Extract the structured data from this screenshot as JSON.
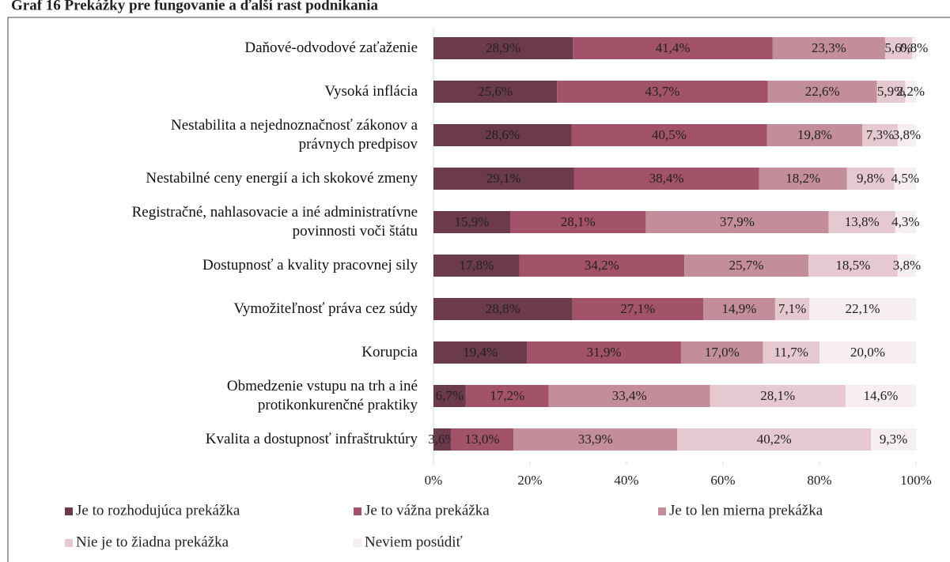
{
  "chart_data": {
    "type": "stacked-barh",
    "title": "Graf 16 Prekážky pre fungovanie a ďalší rast podnikania",
    "categories": [
      "Daňové-odvodové zaťaženie",
      "Vysoká inflácia",
      "Nestabilita a nejednoznačnosť zákonov a\nprávnych predpisov",
      "Nestabilné ceny energií a ich skokové zmeny",
      "Registračné, nahlasovacie a iné administratívne\npovinnosti voči štátu",
      "Dostupnosť a kvality pracovnej sily",
      "Vymožiteľnosť práva cez súdy",
      "Korupcia",
      "Obmedzenie vstupu na trh a iné\nprotikonkurenčné praktiky",
      "Kvalita a dostupnosť infraštruktúry"
    ],
    "series": [
      {
        "name": "Je to rozhodujúca prekážka",
        "color": "#6b3a4c",
        "values": [
          28.9,
          25.6,
          28.6,
          29.1,
          15.9,
          17.8,
          28.8,
          19.4,
          6.7,
          3.6
        ],
        "value_labels": [
          "28,9%",
          "25,6%",
          "28,6%",
          "29,1%",
          "15,9%",
          "17,8%",
          "28,8%",
          "19,4%",
          "6,7%",
          "3,6%"
        ]
      },
      {
        "name": "Je to vážna prekážka",
        "color": "#a25269",
        "values": [
          41.4,
          43.7,
          40.5,
          38.4,
          28.1,
          34.2,
          27.1,
          31.9,
          17.2,
          13.0
        ],
        "value_labels": [
          "41,4%",
          "43,7%",
          "40,5%",
          "38,4%",
          "28,1%",
          "34,2%",
          "27,1%",
          "31,9%",
          "17,2%",
          "13,0%"
        ]
      },
      {
        "name": "Je to len mierna prekážka",
        "color": "#c38d9a",
        "values": [
          23.3,
          22.6,
          19.8,
          18.2,
          37.9,
          25.7,
          14.9,
          17.0,
          33.4,
          33.9
        ],
        "value_labels": [
          "23,3%",
          "22,6%",
          "19,8%",
          "18,2%",
          "37,9%",
          "25,7%",
          "14,9%",
          "17,0%",
          "33,4%",
          "33,9%"
        ]
      },
      {
        "name": "Nie je to žiadna prekážka",
        "color": "#e6c9d0",
        "values": [
          5.6,
          5.9,
          7.3,
          9.8,
          13.8,
          18.5,
          7.1,
          11.7,
          28.1,
          40.2
        ],
        "value_labels": [
          "5,6%",
          "5,9%",
          "7,3%",
          "9,8%",
          "13,8%",
          "18,5%",
          "7,1%",
          "11,7%",
          "28,1%",
          "40,2%"
        ]
      },
      {
        "name": "Neviem posúdiť",
        "color": "#f7eef0",
        "values": [
          0.8,
          2.2,
          3.8,
          4.5,
          4.3,
          3.8,
          22.1,
          20.0,
          14.6,
          9.3
        ],
        "value_labels": [
          "0,8%",
          "2,2%",
          "3,8%",
          "4,5%",
          "4,3%",
          "3,8%",
          "22,1%",
          "20,0%",
          "14,6%",
          "9,3%"
        ]
      }
    ],
    "xlim": [
      0,
      100
    ],
    "xticks": [
      {
        "value": 0,
        "label": "0%"
      },
      {
        "value": 20,
        "label": "20%"
      },
      {
        "value": 40,
        "label": "40%"
      },
      {
        "value": 60,
        "label": "60%"
      },
      {
        "value": 80,
        "label": "80%"
      },
      {
        "value": 100,
        "label": "100%"
      }
    ]
  }
}
